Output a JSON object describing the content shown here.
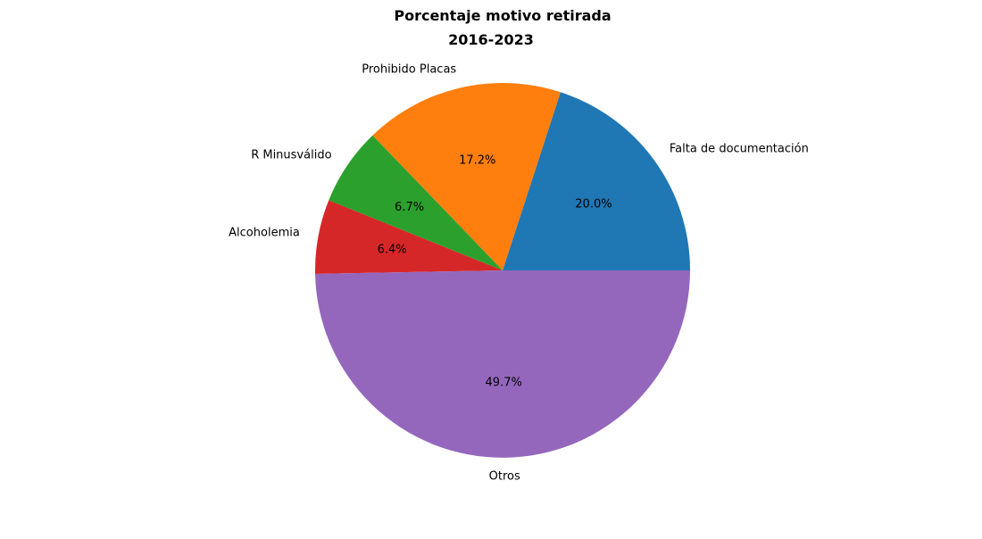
{
  "chart_data": {
    "type": "pie",
    "title": "Porcentaje motivo retirada",
    "subtitle": "2016-2023",
    "categories": [
      "Falta de documentación",
      "Prohibido Placas",
      "R Minusválido",
      "Alcoholemia",
      "Otros"
    ],
    "values": [
      20.0,
      17.2,
      6.7,
      6.4,
      49.7
    ],
    "value_labels": [
      "20.0%",
      "17.2%",
      "6.7%",
      "6.4%",
      "49.7%"
    ],
    "colors": [
      "#1f77b4",
      "#ff7f0e",
      "#2ca02c",
      "#d62728",
      "#9467bd"
    ],
    "start_angle_deg": 0,
    "direction": "counterclockwise",
    "legend": "none"
  }
}
